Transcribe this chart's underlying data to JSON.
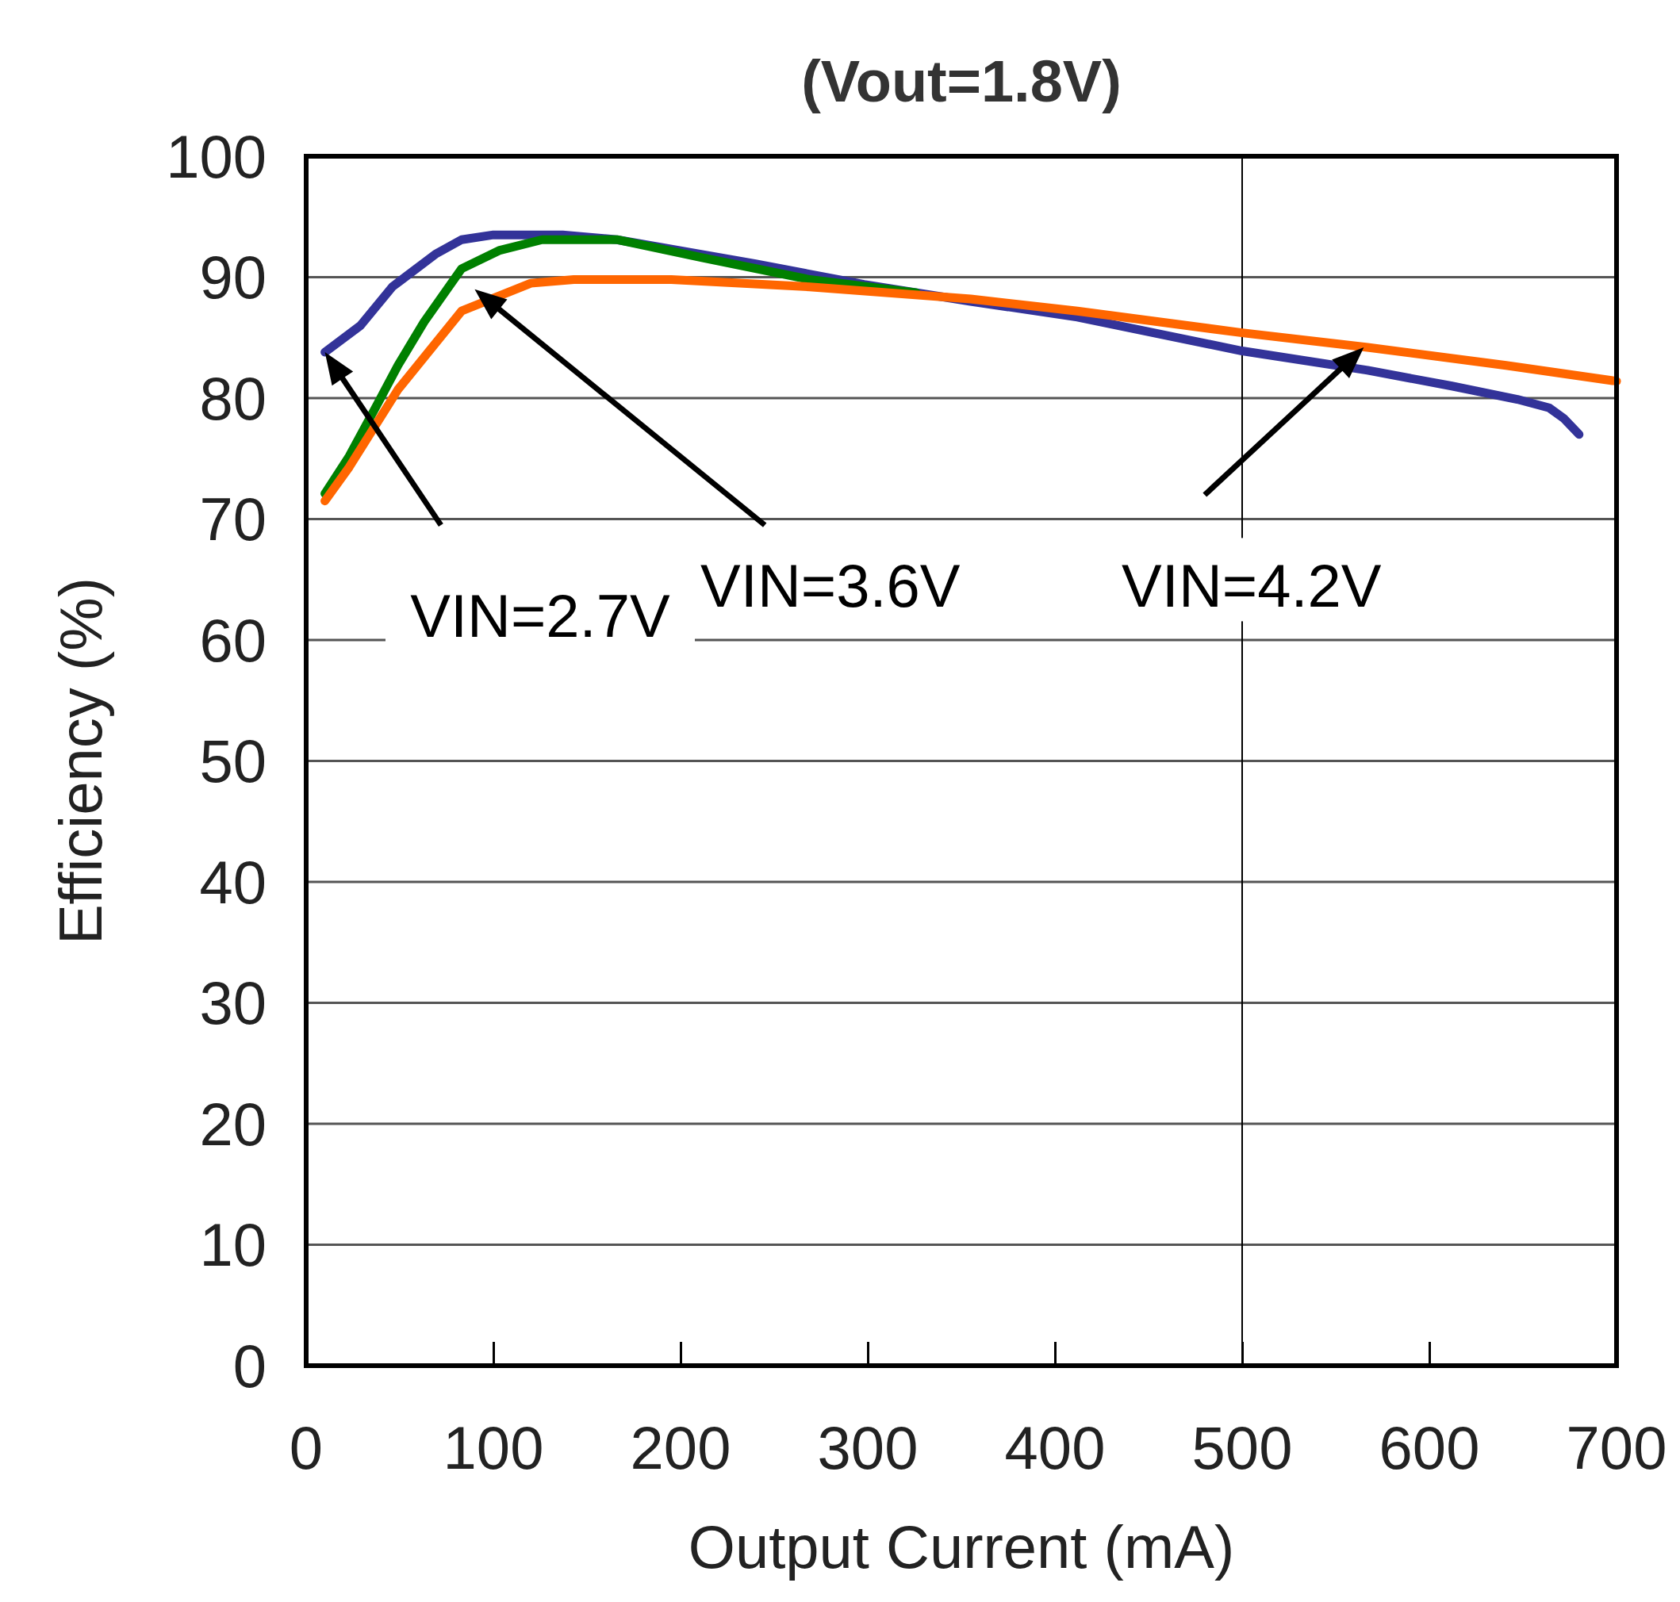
{
  "chart_data": {
    "type": "line",
    "title": "(Vout=1.8V)",
    "xlabel": "Output Current (mA)",
    "ylabel": "Efficiency (%)",
    "xlim": [
      0,
      700
    ],
    "ylim": [
      0,
      100
    ],
    "xticks": [
      0,
      100,
      200,
      300,
      400,
      500,
      600,
      700
    ],
    "yticks": [
      0,
      10,
      20,
      30,
      40,
      50,
      60,
      70,
      80,
      90,
      100
    ],
    "grid": "y",
    "marker": "none",
    "line_style": "solid",
    "ref_lines": [
      {
        "axis": "x",
        "value": 500,
        "label": null,
        "color": "#000000"
      }
    ],
    "series": [
      {
        "color": "#333399",
        "x": [
          10,
          29,
          46,
          69,
          83,
          100,
          137,
          166,
          240,
          298,
          355,
          412,
          500,
          567,
          612,
          647,
          664,
          672,
          680
        ],
        "values": [
          83.8,
          86,
          89.2,
          91.9,
          93.1,
          93.5,
          93.5,
          93.1,
          91.1,
          89.4,
          88,
          86.7,
          83.9,
          82.3,
          81,
          79.9,
          79.2,
          78.3,
          77
        ]
      },
      {
        "color": "#008000",
        "x": [
          10,
          23,
          37,
          49,
          63,
          83,
          103,
          126,
          166,
          212,
          269,
          326
        ],
        "values": [
          72.1,
          75.2,
          79.2,
          82.7,
          86.3,
          90.7,
          92.2,
          93.1,
          93.1,
          91.6,
          89.8,
          88.7
        ]
      },
      {
        "color": "#ff6600",
        "x": [
          10,
          23,
          49,
          83,
          120,
          143,
          195,
          269,
          355,
          412,
          500,
          567,
          641,
          700
        ],
        "values": [
          71.5,
          74.3,
          80.7,
          87.2,
          89.5,
          89.8,
          89.8,
          89.2,
          88.2,
          87.2,
          85.4,
          84.2,
          82.7,
          81.4
        ]
      }
    ],
    "annotations": [
      "VIN=2.7V",
      "VIN=3.6V",
      "VIN=4.2V"
    ]
  }
}
